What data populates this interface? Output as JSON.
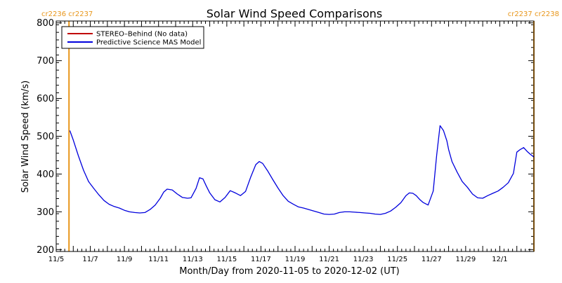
{
  "chart_data": {
    "type": "line",
    "title": "Solar Wind Speed Comparisons",
    "xlabel": "Month/Day from 2020-11-05 to 2020-12-02 (UT)",
    "ylabel": "Solar Wind Speed (km/s)",
    "x_start_date": "2020-11-05",
    "xlim_days": [
      0,
      28
    ],
    "ylim": [
      195,
      805
    ],
    "y_ticks": [
      200,
      300,
      400,
      500,
      600,
      700,
      800
    ],
    "x_tick_labels": [
      {
        "day": 0,
        "label": "11/5"
      },
      {
        "day": 2,
        "label": "11/7"
      },
      {
        "day": 4,
        "label": "11/9"
      },
      {
        "day": 6,
        "label": "11/11"
      },
      {
        "day": 8,
        "label": "11/13"
      },
      {
        "day": 10,
        "label": "11/15"
      },
      {
        "day": 12,
        "label": "11/17"
      },
      {
        "day": 14,
        "label": "11/19"
      },
      {
        "day": 16,
        "label": "11/21"
      },
      {
        "day": 18,
        "label": "11/23"
      },
      {
        "day": 20,
        "label": "11/25"
      },
      {
        "day": 22,
        "label": "11/27"
      },
      {
        "day": 24,
        "label": "11/29"
      },
      {
        "day": 26,
        "label": "12/1"
      }
    ],
    "minor_ticks_per_day": 4,
    "grid": false,
    "legend_position": "top-left",
    "carrington_markers": [
      {
        "day": 0.75,
        "label": "cr2236 cr2237",
        "label_side": "top-left"
      },
      {
        "day": 28,
        "label": "cr2237 cr2238",
        "label_side": "top-right"
      }
    ],
    "marker_color": "#e8961a",
    "series": [
      {
        "name": "STEREO–Behind (No data)",
        "color": "#c00000",
        "x": [],
        "values": []
      },
      {
        "name": "Predictive Science MAS Model",
        "color": "#0000dd",
        "x": [
          0.8,
          1.0,
          1.3,
          1.6,
          1.9,
          2.2,
          2.5,
          2.8,
          3.1,
          3.4,
          3.7,
          4.0,
          4.3,
          4.6,
          4.9,
          5.2,
          5.5,
          5.8,
          6.1,
          6.3,
          6.5,
          6.8,
          7.1,
          7.4,
          7.7,
          7.9,
          8.2,
          8.4,
          8.6,
          8.8,
          9.0,
          9.3,
          9.6,
          9.9,
          10.2,
          10.5,
          10.8,
          11.1,
          11.4,
          11.7,
          11.9,
          12.1,
          12.4,
          12.7,
          13.0,
          13.3,
          13.6,
          13.9,
          14.2,
          14.5,
          14.8,
          15.1,
          15.4,
          15.7,
          16.0,
          16.3,
          16.6,
          16.9,
          17.2,
          17.5,
          17.8,
          18.1,
          18.4,
          18.7,
          19.0,
          19.3,
          19.6,
          19.9,
          20.2,
          20.5,
          20.7,
          20.9,
          21.1,
          21.3,
          21.5,
          21.8,
          22.1,
          22.3,
          22.5,
          22.7,
          22.9,
          23.0,
          23.2,
          23.5,
          23.8,
          24.1,
          24.4,
          24.7,
          25.0,
          25.3,
          25.6,
          25.9,
          26.2,
          26.5,
          26.8,
          27.0,
          27.2,
          27.4,
          27.6,
          27.8,
          28.0
        ],
        "values": [
          515,
          490,
          448,
          410,
          380,
          362,
          345,
          330,
          320,
          314,
          310,
          304,
          300,
          298,
          297,
          298,
          306,
          318,
          336,
          352,
          360,
          358,
          347,
          338,
          336,
          337,
          362,
          390,
          387,
          368,
          350,
          332,
          326,
          338,
          356,
          350,
          343,
          354,
          392,
          425,
          433,
          428,
          408,
          385,
          363,
          343,
          328,
          320,
          313,
          310,
          306,
          302,
          298,
          294,
          293,
          294,
          298,
          300,
          300,
          299,
          298,
          297,
          296,
          294,
          293,
          296,
          302,
          312,
          324,
          343,
          350,
          349,
          343,
          333,
          325,
          318,
          355,
          450,
          528,
          515,
          488,
          465,
          433,
          405,
          380,
          365,
          347,
          337,
          336,
          343,
          349,
          355,
          365,
          377,
          402,
          458,
          465,
          470,
          460,
          452,
          445
        ]
      }
    ]
  }
}
